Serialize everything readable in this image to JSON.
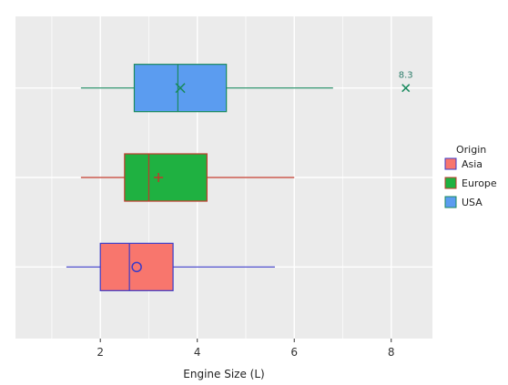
{
  "chart_data": {
    "type": "boxplot",
    "orientation": "horizontal",
    "xlabel": "Engine Size (L)",
    "xticks": [
      2,
      4,
      6,
      8
    ],
    "xlim": [
      0.25,
      8.85
    ],
    "grid": true,
    "legend": {
      "title": "Origin",
      "placement": "right",
      "entries": [
        "Asia",
        "Europe",
        "USA"
      ]
    },
    "series": [
      {
        "name": "Asia",
        "fill": "#f8766d",
        "line": "#3b3bc8",
        "min": 1.3,
        "q1": 2.0,
        "median": 2.6,
        "q3": 3.5,
        "max": 5.6,
        "mean": 2.75,
        "mean_marker": "circle"
      },
      {
        "name": "Europe",
        "fill": "#1fb141",
        "line": "#c0392b",
        "min": 1.6,
        "q1": 2.5,
        "median": 3.0,
        "q3": 4.2,
        "max": 6.0,
        "mean": 3.2,
        "mean_marker": "plus"
      },
      {
        "name": "USA",
        "fill": "#5b9cf0",
        "line": "#1a8a5e",
        "min": 1.6,
        "q1": 2.7,
        "median": 3.6,
        "q3": 4.6,
        "max": 6.8,
        "mean": 3.65,
        "mean_marker": "x",
        "outliers": [
          {
            "value": 8.3,
            "label": "8.3"
          }
        ]
      }
    ]
  }
}
